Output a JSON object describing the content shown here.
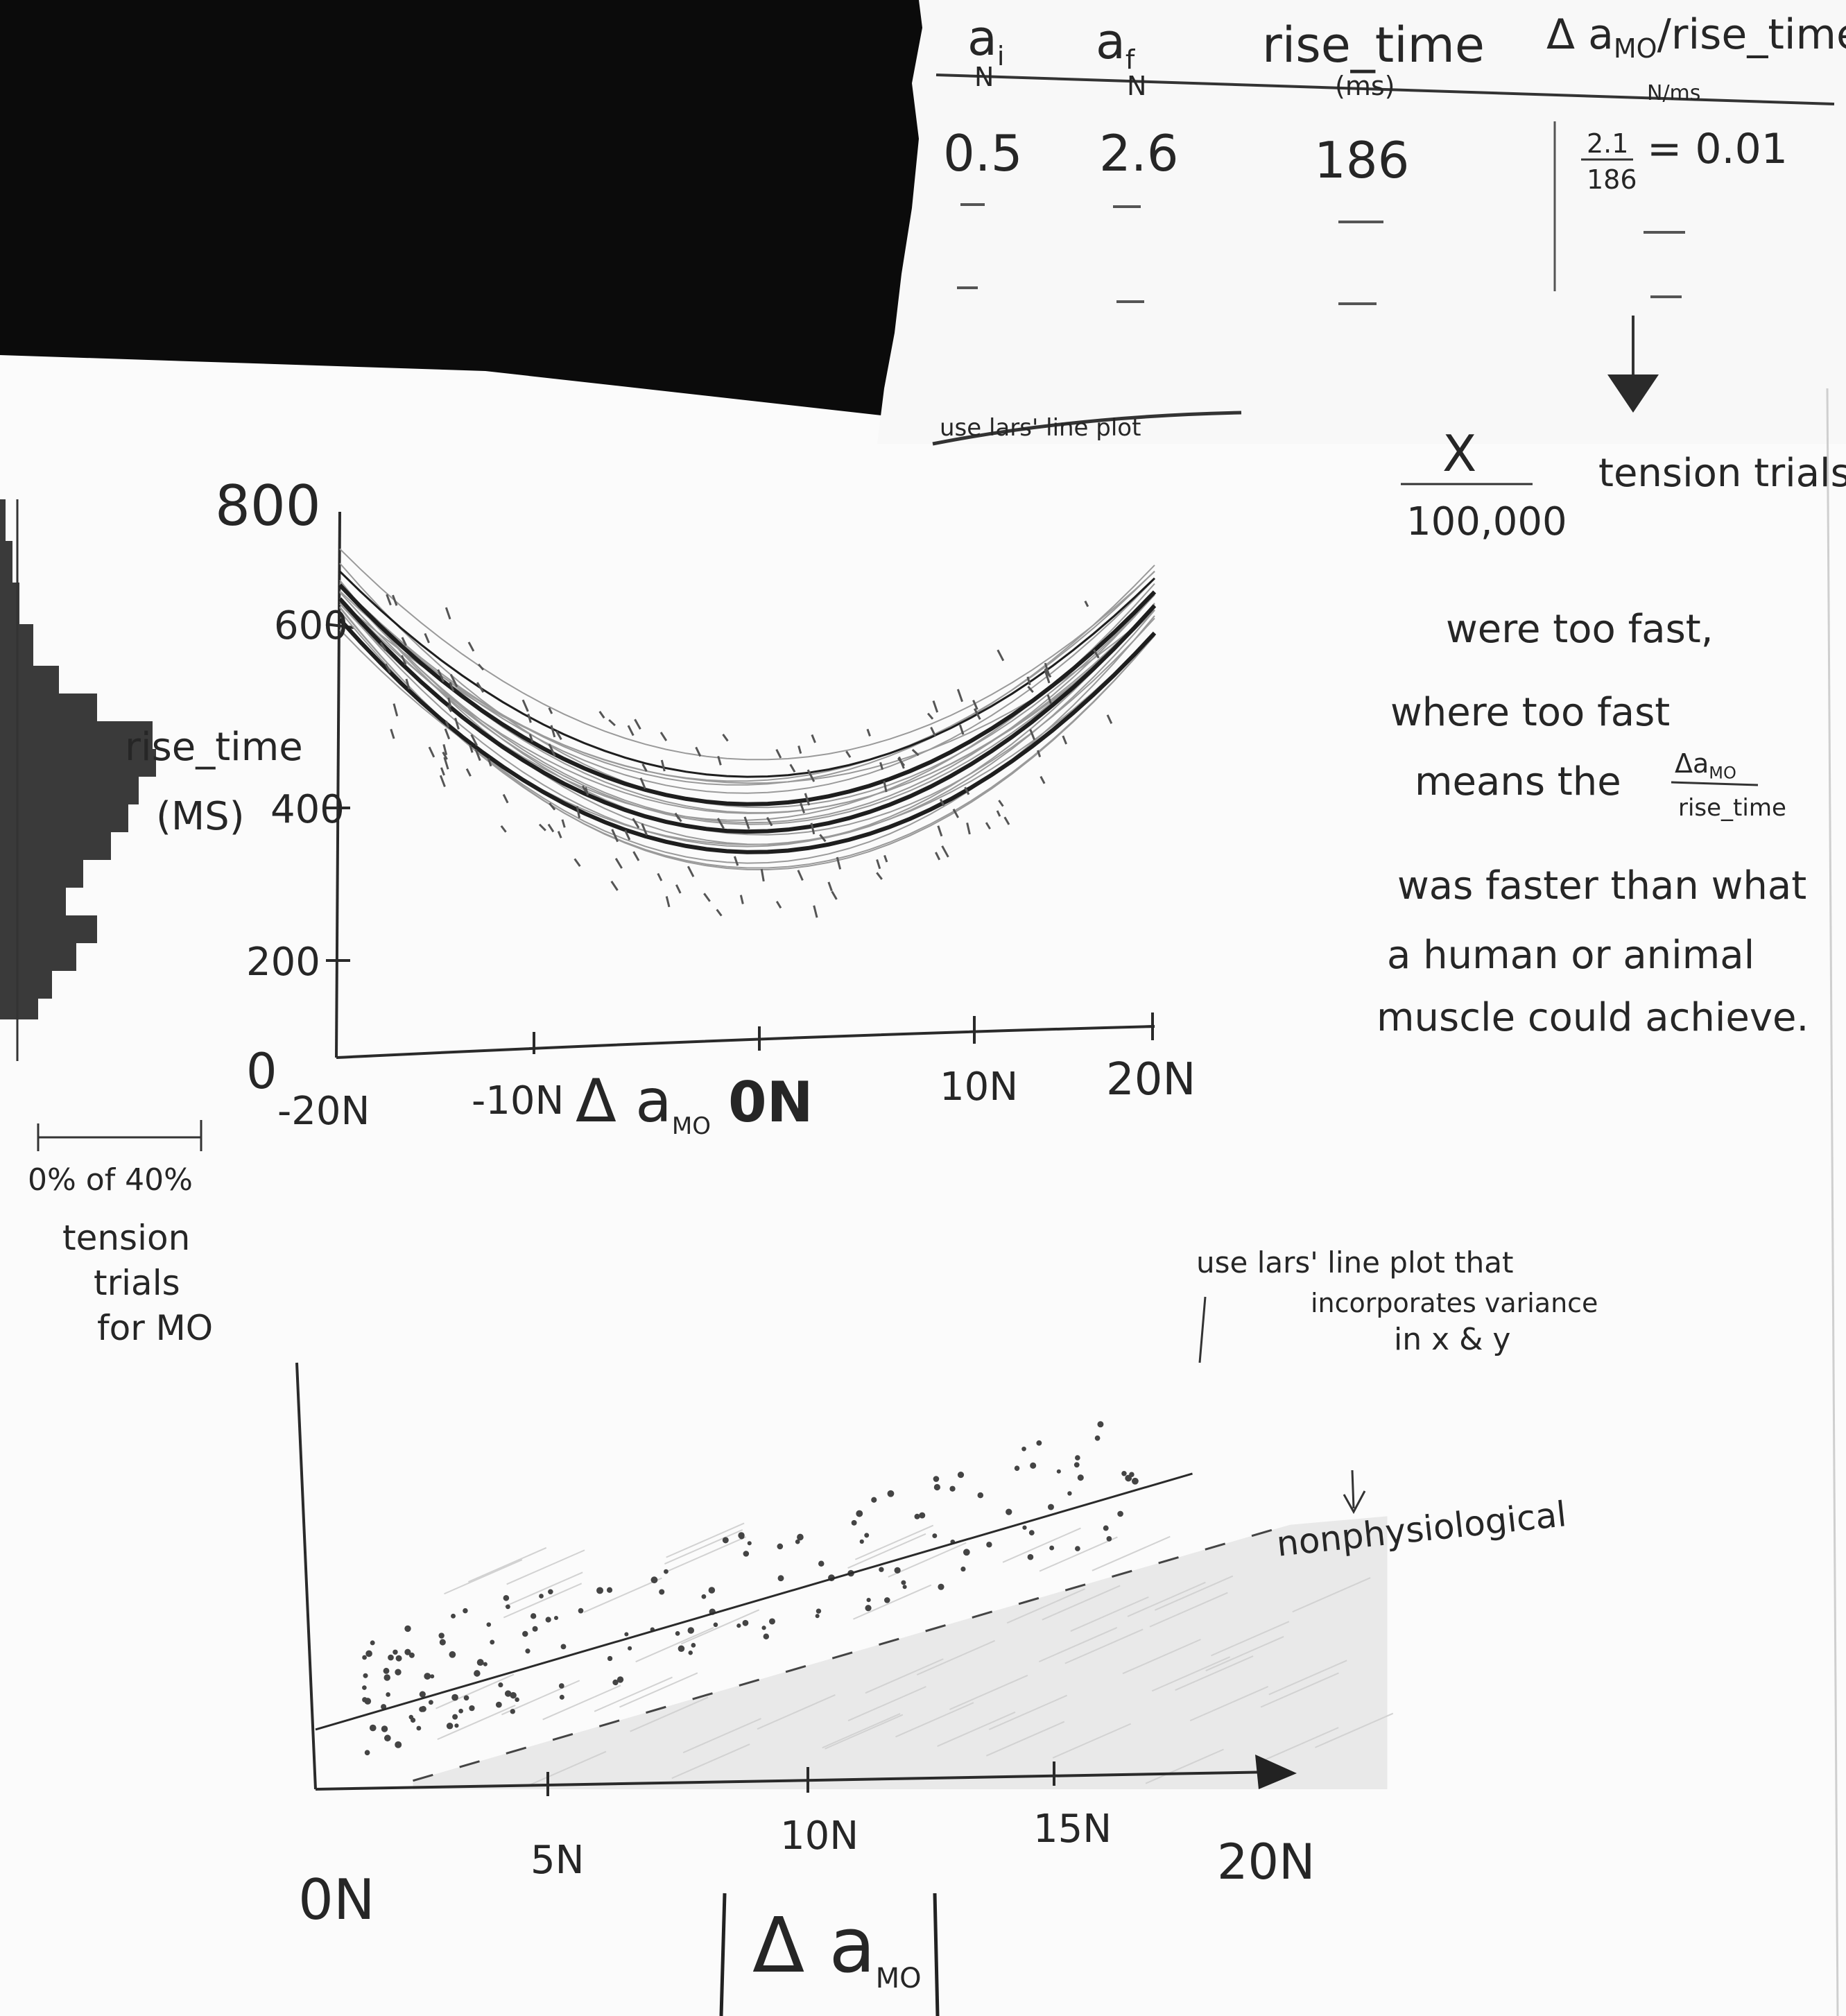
{
  "table": {
    "headers": [
      {
        "label": "a",
        "sub": "i",
        "unit": "N"
      },
      {
        "label": "a",
        "sub": "f",
        "unit": "N"
      },
      {
        "label": "rise_time",
        "sub": "",
        "unit": "(ms)"
      },
      {
        "label": "Δ a",
        "sub": "MO",
        "after": "/rise_time",
        "unit": "N/ms"
      }
    ],
    "row": {
      "ai": "0.5",
      "af": "2.6",
      "rise": "186",
      "frac_num": "2.1",
      "frac_den": "186",
      "frac_result": "= 0.01"
    }
  },
  "crossed_note": "use lars' line plot",
  "side_note": {
    "numerator": "X",
    "denominator": "100,000",
    "tension_trials": "tension trials",
    "line1": "were too fast,",
    "line2": "where too fast",
    "line3": "means the",
    "frac_top": "Δa",
    "frac_top_sub": "MO",
    "frac_bottom": "rise_time",
    "line4": "was faster than what",
    "line5": "a human or animal",
    "line6": "muscle could achieve."
  },
  "chart1": {
    "ylabel": "rise_time",
    "yunit": "(MS)",
    "yticks": [
      "800",
      "600",
      "400",
      "200",
      "0"
    ],
    "xticks": [
      "-20N",
      "-10N",
      "0N",
      "10N",
      "20N"
    ],
    "xlabel": "Δ a",
    "xlabel_sub": "MO",
    "hist_scale": "0% of 40%",
    "hist_caption": [
      "tension",
      "trials",
      "for MO"
    ]
  },
  "chart2": {
    "xticks": [
      "0N",
      "5N",
      "10N",
      "15N",
      "20N"
    ],
    "xlabel": "Δ a",
    "xlabel_sub": "MO",
    "annotation": [
      "use lars' line plot that",
      "incorporates variance",
      "in x & y"
    ],
    "region_label": "nonphysiological"
  },
  "chart_data": [
    {
      "type": "scatter",
      "xlabel": "Δ a MO",
      "ylabel": "rise_time (MS)",
      "xlim": [
        -20,
        20
      ],
      "ylim": [
        0,
        800
      ],
      "yticks": [
        0,
        200,
        400,
        600,
        800
      ],
      "xticks": [
        -20,
        -10,
        0,
        10,
        20
      ],
      "fits": [
        {
          "x": [
            -20,
            -10,
            0,
            10,
            20
          ],
          "y": [
            690,
            450,
            370,
            450,
            680
          ]
        },
        {
          "x": [
            -20,
            -10,
            0,
            10,
            20
          ],
          "y": [
            670,
            420,
            330,
            410,
            660
          ]
        },
        {
          "x": [
            -20,
            -10,
            0,
            10,
            20
          ],
          "y": [
            640,
            400,
            300,
            390,
            620
          ]
        },
        {
          "x": [
            -20,
            -10,
            0,
            10,
            20
          ],
          "y": [
            710,
            480,
            410,
            470,
            700
          ]
        }
      ]
    },
    {
      "type": "scatter",
      "xlabel": "|Δ a MO|",
      "xlim": [
        0,
        20
      ],
      "xticks": [
        0,
        5,
        10,
        15,
        20
      ],
      "trend_line": {
        "x": [
          0,
          18
        ],
        "y": [
          0.14,
          0.74
        ]
      },
      "boundary_line": {
        "x": [
          2,
          20
        ],
        "y": [
          0.02,
          0.62
        ]
      },
      "shaded_region": "below boundary: nonphysiological"
    }
  ]
}
